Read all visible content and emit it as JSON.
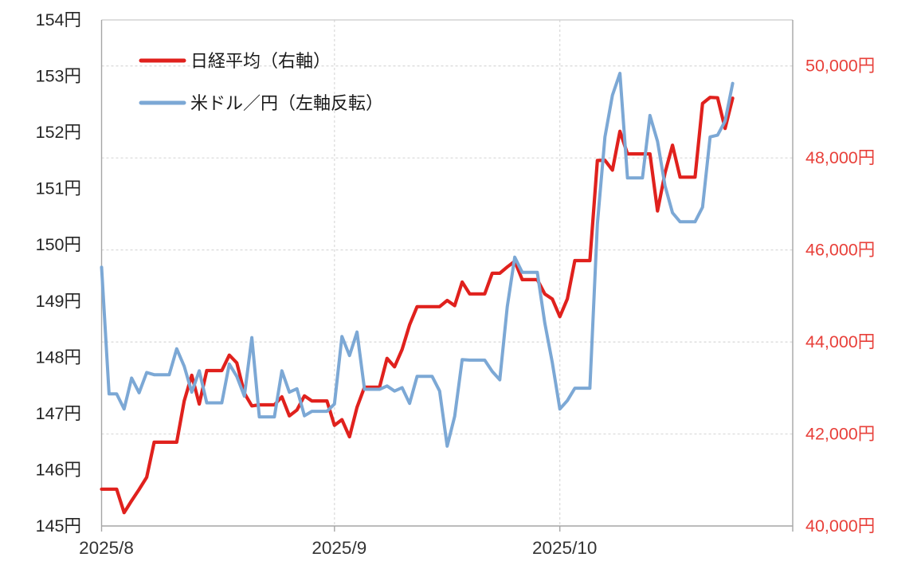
{
  "chart_data": {
    "type": "line",
    "title": "",
    "legend_position": "top-left",
    "grid": "dashed",
    "colors": {
      "nikkei_line": "#e0211d",
      "usdjpy_line": "#7ca8d5",
      "right_axis_label": "#e8403a",
      "left_axis_label": "#262626",
      "x_axis_label": "#333333",
      "gridline": "#d9d9d9",
      "axis_line": "#a6a6a6",
      "frame": "#c9c9c9",
      "legend_text": "#1a1a1a"
    },
    "left_axis": {
      "min": 145,
      "max": 154,
      "step": 1,
      "unit": "円",
      "labels": [
        "145円",
        "146円",
        "147円",
        "148円",
        "149円",
        "150円",
        "151円",
        "152円",
        "153円",
        "154円"
      ]
    },
    "right_axis": {
      "min": 40000,
      "max": 51000,
      "grid_values": [
        42000,
        44000,
        46000,
        48000,
        50000
      ],
      "label_values": [
        40000,
        42000,
        44000,
        46000,
        48000,
        50000
      ],
      "unit": "円",
      "labels": [
        "40,000円",
        "42,000円",
        "44,000円",
        "46,000円",
        "48,000円",
        "50,000円"
      ]
    },
    "x_axis": {
      "tick_labels": [
        "2025/8",
        "2025/9",
        "2025/10"
      ],
      "month_offsets": [
        0,
        31,
        61
      ],
      "total_days": 92,
      "start_date": "2025/8/1",
      "end_date": "2025/10/24"
    },
    "dates": [
      "8/1",
      "8/2",
      "8/3",
      "8/4",
      "8/5",
      "8/6",
      "8/7",
      "8/8",
      "8/9",
      "8/10",
      "8/11",
      "8/12",
      "8/13",
      "8/14",
      "8/15",
      "8/16",
      "8/17",
      "8/18",
      "8/19",
      "8/20",
      "8/21",
      "8/22",
      "8/23",
      "8/24",
      "8/25",
      "8/26",
      "8/27",
      "8/28",
      "8/29",
      "8/30",
      "8/31",
      "9/1",
      "9/2",
      "9/3",
      "9/4",
      "9/5",
      "9/6",
      "9/7",
      "9/8",
      "9/9",
      "9/10",
      "9/11",
      "9/12",
      "9/13",
      "9/14",
      "9/15",
      "9/16",
      "9/17",
      "9/18",
      "9/19",
      "9/20",
      "9/21",
      "9/22",
      "9/23",
      "9/24",
      "9/25",
      "9/26",
      "9/27",
      "9/28",
      "9/29",
      "9/30",
      "10/1",
      "10/2",
      "10/3",
      "10/4",
      "10/5",
      "10/6",
      "10/7",
      "10/8",
      "10/9",
      "10/10",
      "10/11",
      "10/12",
      "10/13",
      "10/14",
      "10/15",
      "10/16",
      "10/17",
      "10/18",
      "10/19",
      "10/20",
      "10/21",
      "10/22",
      "10/23",
      "10/24"
    ],
    "series": [
      {
        "name": "日経平均（右軸）",
        "axis": "right",
        "color": "#e0211d",
        "values": [
          40800,
          40800,
          40800,
          40290,
          40550,
          40795,
          41059,
          41820,
          41820,
          41820,
          41820,
          42718,
          43275,
          42650,
          43378,
          43378,
          43378,
          43714,
          43546,
          42888,
          42610,
          42633,
          42633,
          42633,
          42808,
          42394,
          42520,
          42828,
          42718,
          42718,
          42718,
          42188,
          42310,
          41938,
          42580,
          43018,
          43018,
          43018,
          43643,
          43459,
          43837,
          44372,
          44768,
          44768,
          44768,
          44768,
          44902,
          44790,
          45303,
          45045,
          45045,
          45045,
          45493,
          45493,
          45630,
          45754,
          45354,
          45354,
          45354,
          45043,
          44932,
          44550,
          44936,
          45769,
          45769,
          45769,
          47944,
          47950,
          47734,
          48580,
          48088,
          48088,
          48088,
          48088,
          46847,
          47672,
          48277,
          47582,
          47582,
          47582,
          49185,
          49316,
          49307,
          48641,
          49299
        ]
      },
      {
        "name": "米ドル／円（左軸反転）",
        "axis": "left",
        "color": "#7ca8d5",
        "values": [
          149.6,
          147.35,
          147.35,
          147.08,
          147.63,
          147.37,
          147.73,
          147.69,
          147.69,
          147.69,
          148.15,
          147.84,
          147.38,
          147.76,
          147.19,
          147.19,
          147.19,
          147.88,
          147.66,
          147.31,
          148.35,
          146.94,
          146.94,
          146.94,
          147.76,
          147.38,
          147.44,
          146.96,
          147.04,
          147.04,
          147.04,
          147.17,
          148.37,
          148.03,
          148.45,
          147.43,
          147.43,
          147.43,
          147.49,
          147.4,
          147.46,
          147.18,
          147.66,
          147.66,
          147.66,
          147.4,
          146.42,
          146.95,
          147.96,
          147.95,
          147.95,
          147.95,
          147.75,
          147.6,
          148.9,
          149.78,
          149.51,
          149.51,
          149.51,
          148.61,
          147.9,
          147.08,
          147.23,
          147.45,
          147.45,
          147.45,
          150.37,
          151.92,
          152.66,
          153.05,
          151.19,
          151.19,
          151.19,
          152.3,
          151.84,
          151.05,
          150.57,
          150.41,
          150.41,
          150.41,
          150.67,
          151.92,
          151.95,
          152.2,
          152.87
        ]
      }
    ]
  }
}
